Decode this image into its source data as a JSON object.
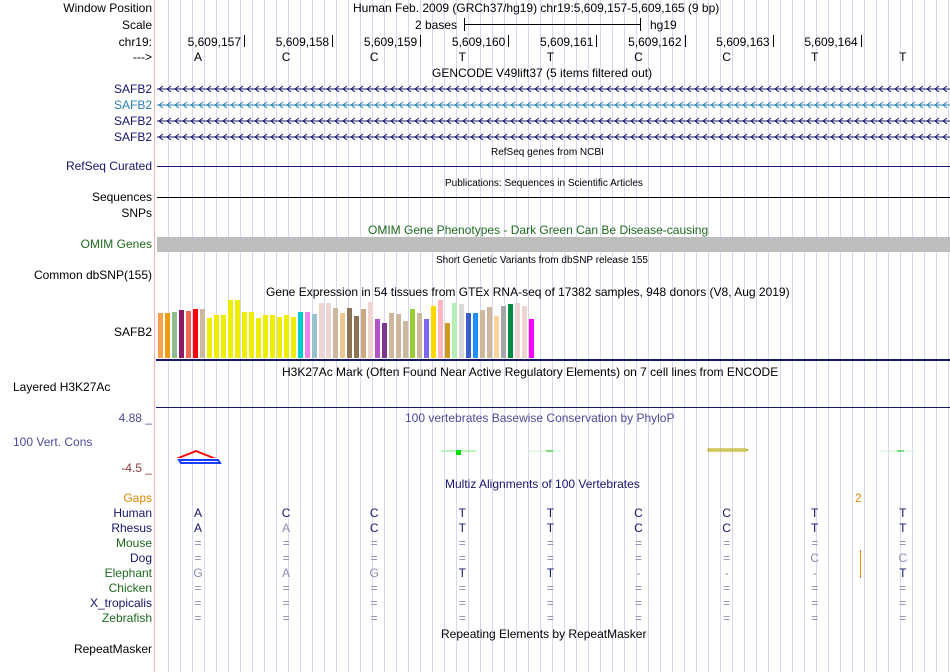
{
  "header": {
    "window_position_label": "Window Position",
    "window_position_value": "Human Feb. 2009 (GRCh37/hg19)   chr19:5,609,157-5,609,165 (9 bp)",
    "scale_label": "Scale",
    "scale_value": "2 bases",
    "scale_assembly": "hg19",
    "chrom_label": "chr19:",
    "strand_label": "--->",
    "positions": [
      "5,609,157",
      "5,609,158",
      "5,609,159",
      "5,609,160",
      "5,609,161",
      "5,609,162",
      "5,609,163",
      "5,609,164"
    ],
    "sequence": [
      "A",
      "C",
      "C",
      "T",
      "T",
      "C",
      "C",
      "T",
      "T"
    ]
  },
  "tracks": {
    "gencode": {
      "title": "GENCODE V49lift37 (5 items filtered out)",
      "items": [
        {
          "label": "SAFB2",
          "color": "#15156b"
        },
        {
          "label": "SAFB2",
          "color": "#2a7fb0"
        },
        {
          "label": "SAFB2",
          "color": "#15156b"
        },
        {
          "label": "SAFB2",
          "color": "#15156b"
        }
      ]
    },
    "refseq": {
      "title": "RefSeq genes from NCBI",
      "label": "RefSeq Curated"
    },
    "publications": {
      "title": "Publications: Sequences in Scientific Articles",
      "label": "Sequences",
      "label2": "SNPs"
    },
    "omim": {
      "title": "OMIM Gene Phenotypes - Dark Green Can Be Disease-causing",
      "label": "OMIM Genes"
    },
    "dbsnp": {
      "title": "Short Genetic Variants from dbSNP release 155",
      "label": "Common dbSNP(155)"
    },
    "gtex": {
      "title": "Gene Expression in 54 tissues from GTEx RNA-seq of 17382 samples, 948 donors (V8, Aug 2019)",
      "label": "SAFB2",
      "bars": [
        {
          "c": "#f4a34a",
          "v": 0.78
        },
        {
          "c": "#ef9c13",
          "v": 0.78
        },
        {
          "c": "#8fbc8f",
          "v": 0.8
        },
        {
          "c": "#8b1c62",
          "v": 0.83
        },
        {
          "c": "#ee6a50",
          "v": 0.81
        },
        {
          "c": "#ff0000",
          "v": 0.85
        },
        {
          "c": "#cdb79e",
          "v": 0.85
        },
        {
          "c": "#eeee00",
          "v": 0.69
        },
        {
          "c": "#eeee00",
          "v": 0.74
        },
        {
          "c": "#eeee00",
          "v": 0.74
        },
        {
          "c": "#eeee00",
          "v": 1.0
        },
        {
          "c": "#eeee00",
          "v": 1.0
        },
        {
          "c": "#eeee00",
          "v": 0.8
        },
        {
          "c": "#eeee00",
          "v": 0.8
        },
        {
          "c": "#eeee00",
          "v": 0.69
        },
        {
          "c": "#eeee00",
          "v": 0.75
        },
        {
          "c": "#eeee00",
          "v": 0.75
        },
        {
          "c": "#eeee00",
          "v": 0.71
        },
        {
          "c": "#eeee00",
          "v": 0.74
        },
        {
          "c": "#eeee00",
          "v": 0.71
        },
        {
          "c": "#00cdcd",
          "v": 0.8
        },
        {
          "c": "#ee82ee",
          "v": 0.8
        },
        {
          "c": "#9ac0cd",
          "v": 0.76
        },
        {
          "c": "#eed5d2",
          "v": 0.95
        },
        {
          "c": "#eed5d2",
          "v": 0.95
        },
        {
          "c": "#cdb79e",
          "v": 0.86
        },
        {
          "c": "#eec591",
          "v": 0.78
        },
        {
          "c": "#8b7355",
          "v": 0.86
        },
        {
          "c": "#8b7355",
          "v": 0.72
        },
        {
          "c": "#cdaa7d",
          "v": 0.84
        },
        {
          "c": "#eed5d2",
          "v": 0.97
        },
        {
          "c": "#b452cd",
          "v": 0.67
        },
        {
          "c": "#7a378b",
          "v": 0.6
        },
        {
          "c": "#cdb79e",
          "v": 0.77
        },
        {
          "c": "#cdb79e",
          "v": 0.76
        },
        {
          "c": "#cdb79e",
          "v": 0.64
        },
        {
          "c": "#9acd32",
          "v": 0.84
        },
        {
          "c": "#cdb79e",
          "v": 0.77
        },
        {
          "c": "#7b68ee",
          "v": 0.67
        },
        {
          "c": "#ffd700",
          "v": 0.9
        },
        {
          "c": "#ffb6c1",
          "v": 1.0
        },
        {
          "c": "#cd9b1d",
          "v": 0.6
        },
        {
          "c": "#b4eeb4",
          "v": 0.95
        },
        {
          "c": "#d9d9d9",
          "v": 0.93
        },
        {
          "c": "#3a5fcd",
          "v": 0.77
        },
        {
          "c": "#1e90ff",
          "v": 0.77
        },
        {
          "c": "#cdb79e",
          "v": 0.82
        },
        {
          "c": "#cdb79e",
          "v": 0.88
        },
        {
          "c": "#ffd39b",
          "v": 0.72
        },
        {
          "c": "#a6a6a6",
          "v": 0.89
        },
        {
          "c": "#008b45",
          "v": 0.93
        },
        {
          "c": "#eed5d2",
          "v": 0.95
        },
        {
          "c": "#eed5d2",
          "v": 0.9
        },
        {
          "c": "#ff00ff",
          "v": 0.68
        }
      ]
    },
    "h3k27ac": {
      "title": "H3K27Ac Mark (Often Found Near Active Regulatory Elements) on 7 cell lines from ENCODE",
      "label": "Layered H3K27Ac"
    },
    "phylop": {
      "title": "100 vertebrates Basewise Conservation by PhyloP",
      "label": "100 Vert. Cons",
      "max": "4.88 _",
      "min": "-4.5 _"
    },
    "multiz": {
      "title": "Multiz Alignments of 100 Vertebrates",
      "gaps_label": "Gaps",
      "gap_count": "2",
      "species": [
        {
          "name": "Human",
          "color": "navy",
          "bases": [
            "A",
            "C",
            "C",
            "T",
            "T",
            "C",
            "C",
            "T",
            "T"
          ],
          "strong": [
            1,
            1,
            1,
            1,
            1,
            1,
            1,
            1,
            1
          ]
        },
        {
          "name": "Rhesus",
          "color": "navy",
          "bases": [
            "A",
            "A",
            "C",
            "T",
            "T",
            "C",
            "C",
            "T",
            "T"
          ],
          "strong": [
            1,
            0,
            1,
            1,
            1,
            1,
            1,
            1,
            1
          ]
        },
        {
          "name": "Mouse",
          "color": "green",
          "bases": [
            "=",
            "=",
            "=",
            "=",
            "=",
            "=",
            "=",
            "=",
            "="
          ],
          "strong": [
            0,
            0,
            0,
            0,
            0,
            0,
            0,
            0,
            0
          ]
        },
        {
          "name": "Dog",
          "color": "navy",
          "bases": [
            "=",
            "=",
            "=",
            "=",
            "=",
            "=",
            "=",
            "C",
            "C"
          ],
          "strong": [
            0,
            0,
            0,
            0,
            0,
            0,
            0,
            0,
            0
          ]
        },
        {
          "name": "Elephant",
          "color": "green",
          "bases": [
            "G",
            "A",
            "G",
            "T",
            "T",
            "-",
            "-",
            "-",
            "T"
          ],
          "strong": [
            0,
            0,
            0,
            1,
            1,
            0,
            0,
            0,
            1
          ]
        },
        {
          "name": "Chicken",
          "color": "green",
          "bases": [
            "=",
            "=",
            "=",
            "=",
            "=",
            "=",
            "=",
            "=",
            "="
          ],
          "strong": [
            0,
            0,
            0,
            0,
            0,
            0,
            0,
            0,
            0
          ]
        },
        {
          "name": "X_tropicalis",
          "color": "navy",
          "bases": [
            "=",
            "=",
            "=",
            "=",
            "=",
            "=",
            "=",
            "=",
            "="
          ],
          "strong": [
            0,
            0,
            0,
            0,
            0,
            0,
            0,
            0,
            0
          ]
        },
        {
          "name": "Zebrafish",
          "color": "green",
          "bases": [
            "=",
            "=",
            "=",
            "=",
            "=",
            "=",
            "=",
            "=",
            "="
          ],
          "strong": [
            0,
            0,
            0,
            0,
            0,
            0,
            0,
            0,
            0
          ]
        }
      ]
    },
    "repeatmasker": {
      "title": "Repeating Elements by RepeatMasker",
      "label": "RepeatMasker"
    }
  }
}
